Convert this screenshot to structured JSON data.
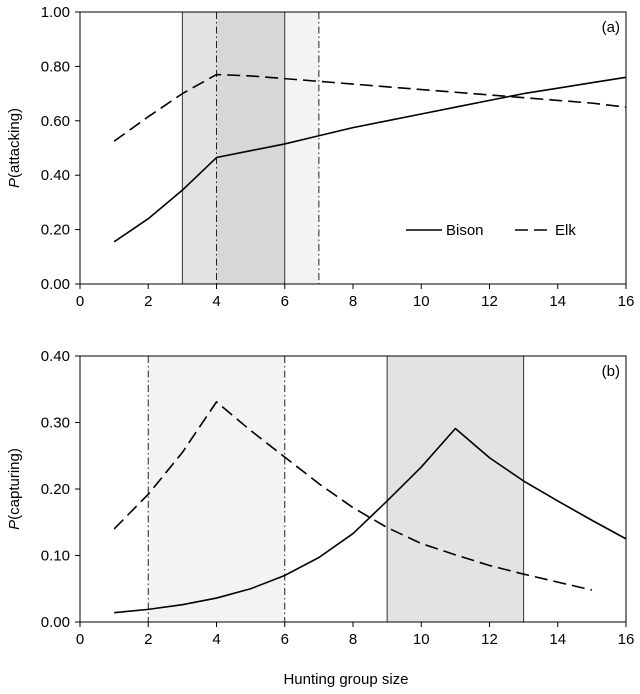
{
  "chart_data": [
    {
      "type": "line",
      "panel_label": "(a)",
      "ylabel_italic": "P",
      "ylabel_rest": "(attacking)",
      "xlim": [
        0,
        16
      ],
      "ylim": [
        0,
        1
      ],
      "x_ticks": [
        "0",
        "2",
        "4",
        "6",
        "8",
        "10",
        "12",
        "14",
        "16"
      ],
      "y_ticks": [
        "0.00",
        "0.20",
        "0.40",
        "0.60",
        "0.80",
        "1.00"
      ],
      "legend_position": "bottom-right",
      "shaded_regions": [
        {
          "from": 3,
          "to": 6,
          "color": "#e3e3e3",
          "edge": "solid"
        },
        {
          "from": 4,
          "to": 7,
          "color": "#f3f3f3",
          "edge": "dash-dot"
        }
      ],
      "series": [
        {
          "name": "Bison",
          "style": "solid",
          "x": [
            1,
            2,
            3,
            4,
            5,
            6,
            7,
            8,
            9,
            10,
            11,
            12,
            13,
            14,
            15,
            16
          ],
          "y": [
            0.155,
            0.24,
            0.345,
            0.465,
            0.49,
            0.515,
            0.545,
            0.575,
            0.6,
            0.625,
            0.65,
            0.675,
            0.7,
            0.72,
            0.74,
            0.76
          ]
        },
        {
          "name": "Elk",
          "style": "dashed",
          "x": [
            1,
            2,
            3,
            4,
            5,
            6,
            7,
            8,
            9,
            10,
            11,
            12,
            13,
            14,
            15,
            16
          ],
          "y": [
            0.525,
            0.615,
            0.7,
            0.77,
            0.765,
            0.755,
            0.745,
            0.735,
            0.725,
            0.715,
            0.705,
            0.695,
            0.685,
            0.675,
            0.665,
            0.65
          ]
        }
      ]
    },
    {
      "type": "line",
      "panel_label": "(b)",
      "ylabel_italic": "P",
      "ylabel_rest": "(capturing)",
      "xlabel": "Hunting group size",
      "xlim": [
        0,
        16
      ],
      "ylim": [
        0,
        0.4
      ],
      "x_ticks": [
        "0",
        "2",
        "4",
        "6",
        "8",
        "10",
        "12",
        "14",
        "16"
      ],
      "y_ticks": [
        "0.00",
        "0.10",
        "0.20",
        "0.30",
        "0.40"
      ],
      "shaded_regions": [
        {
          "from": 2,
          "to": 6,
          "color": "#f3f3f3",
          "edge": "dash-dot"
        },
        {
          "from": 9,
          "to": 13,
          "color": "#e3e3e3",
          "edge": "solid"
        }
      ],
      "series": [
        {
          "name": "Bison",
          "style": "solid",
          "x": [
            1,
            2,
            3,
            4,
            5,
            6,
            7,
            8,
            9,
            10,
            11,
            12,
            13,
            14,
            15,
            16
          ],
          "y": [
            0.014,
            0.019,
            0.026,
            0.036,
            0.05,
            0.07,
            0.097,
            0.133,
            0.182,
            0.233,
            0.291,
            0.247,
            0.212,
            0.182,
            0.153,
            0.125
          ]
        },
        {
          "name": "Elk",
          "style": "dashed",
          "x": [
            1,
            2,
            3,
            4,
            5,
            6,
            7,
            8,
            9,
            10,
            11,
            12,
            13,
            14,
            15
          ],
          "y": [
            0.14,
            0.192,
            0.255,
            0.331,
            0.288,
            0.248,
            0.208,
            0.172,
            0.142,
            0.118,
            0.101,
            0.085,
            0.072,
            0.06,
            0.048
          ]
        }
      ]
    }
  ]
}
